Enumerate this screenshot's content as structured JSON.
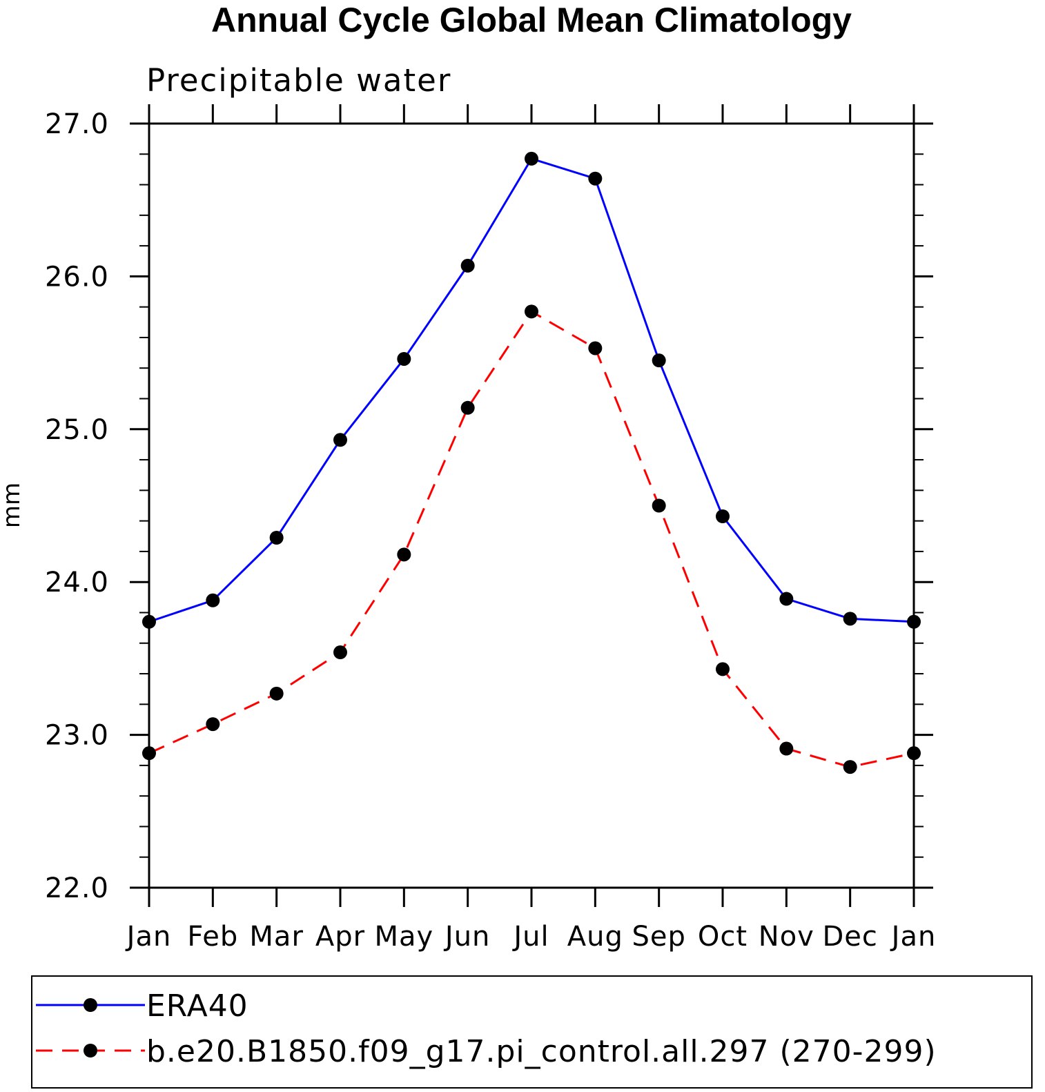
{
  "chart_data": {
    "type": "line",
    "title": "Annual Cycle Global Mean Climatology",
    "subtitle": "Precipitable water",
    "xlabel": "",
    "ylabel": "mm",
    "categories": [
      "Jan",
      "Feb",
      "Mar",
      "Apr",
      "May",
      "Jun",
      "Jul",
      "Aug",
      "Sep",
      "Oct",
      "Nov",
      "Dec",
      "Jan"
    ],
    "ylim": [
      22.0,
      27.0
    ],
    "yticks": [
      "22.0",
      "23.0",
      "24.0",
      "25.0",
      "26.0",
      "27.0"
    ],
    "grid": false,
    "legend_position": "bottom",
    "series": [
      {
        "name": "ERA40",
        "color": "#0000ff",
        "line_style": "solid",
        "marker": "filled-circle",
        "values": [
          23.74,
          23.88,
          24.29,
          24.93,
          25.46,
          26.07,
          26.77,
          26.64,
          25.45,
          24.43,
          23.89,
          23.76,
          23.74
        ]
      },
      {
        "name": "b.e20.B1850.f09_g17.pi_control.all.297 (270-299)",
        "color": "#ff0000",
        "line_style": "dashed",
        "marker": "filled-circle",
        "values": [
          22.88,
          23.07,
          23.27,
          23.54,
          24.18,
          25.14,
          25.77,
          25.53,
          24.5,
          23.43,
          22.91,
          22.79,
          22.88
        ]
      }
    ]
  }
}
